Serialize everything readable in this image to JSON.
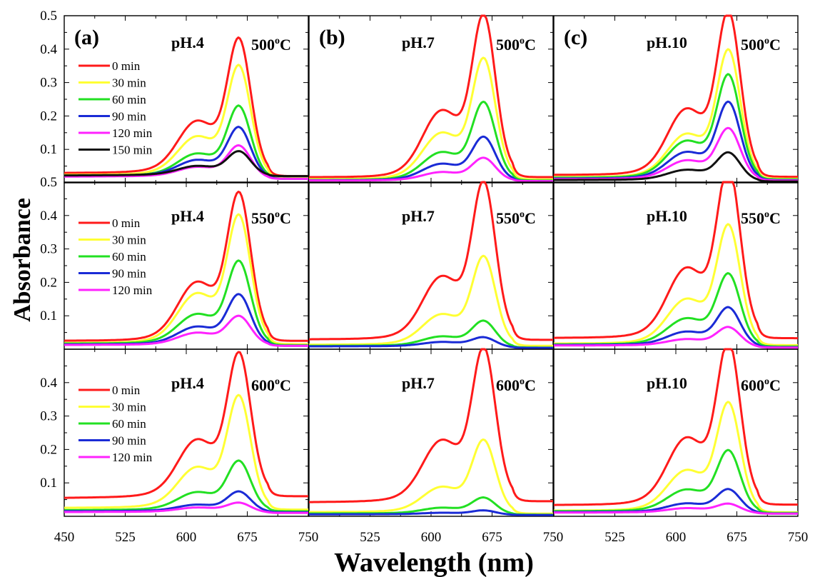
{
  "chart_data": {
    "type": "line",
    "layout": "3x3 grid of absorbance spectra panels",
    "xlabel": "Wavelength (nm)",
    "ylabel": "Absorbance",
    "xlim": [
      450,
      750
    ],
    "x_ticks": [
      "450",
      "525",
      "600",
      "675",
      "750"
    ],
    "ylim": [
      0,
      0.5
    ],
    "y_ticks": [
      "0.1",
      "0.2",
      "0.3",
      "0.4",
      "0.5"
    ],
    "grid": false,
    "legend_placement": "upper-left in left column panels",
    "series_colors": {
      "0 min": "#ff1a1a",
      "30 min": "#ffff33",
      "60 min": "#22e022",
      "90 min": "#1a2bd6",
      "120 min": "#ff22ff",
      "150 min": "#111111"
    },
    "panels": [
      {
        "row": 0,
        "col": 0,
        "panel_label": "(a)",
        "ph": "pH.4",
        "temp_num": "500",
        "temp_unit": "C",
        "legend": [
          "0 min",
          "30 min",
          "60 min",
          "90 min",
          "120 min",
          "150 min"
        ],
        "series": [
          {
            "name": "0 min",
            "peak": 0.39,
            "shoulder": 0.22,
            "base_left": 0.035,
            "base_right": 0.02
          },
          {
            "name": "30 min",
            "peak": 0.32,
            "shoulder": 0.165,
            "base_left": 0.028,
            "base_right": 0.015
          },
          {
            "name": "60 min",
            "peak": 0.213,
            "shoulder": 0.103,
            "base_left": 0.025,
            "base_right": 0.012
          },
          {
            "name": "90 min",
            "peak": 0.155,
            "shoulder": 0.08,
            "base_left": 0.025,
            "base_right": 0.012
          },
          {
            "name": "120 min",
            "peak": 0.105,
            "shoulder": 0.055,
            "base_left": 0.022,
            "base_right": 0.012
          },
          {
            "name": "150 min",
            "peak": 0.088,
            "shoulder": 0.058,
            "base_left": 0.026,
            "base_right": 0.02
          }
        ]
      },
      {
        "row": 0,
        "col": 1,
        "panel_label": "(b)",
        "ph": "pH.7",
        "temp_num": "500",
        "temp_unit": "C",
        "legend": [],
        "series": [
          {
            "name": "0 min",
            "peak": 0.447,
            "shoulder": 0.26,
            "base_left": 0.02,
            "base_right": 0.017
          },
          {
            "name": "30 min",
            "peak": 0.333,
            "shoulder": 0.18,
            "base_left": 0.013,
            "base_right": 0.01
          },
          {
            "name": "60 min",
            "peak": 0.218,
            "shoulder": 0.11,
            "base_left": 0.01,
            "base_right": 0.007
          },
          {
            "name": "90 min",
            "peak": 0.124,
            "shoulder": 0.068,
            "base_left": 0.009,
            "base_right": 0.005
          },
          {
            "name": "120 min",
            "peak": 0.068,
            "shoulder": 0.038,
            "base_left": 0.008,
            "base_right": 0.005
          }
        ]
      },
      {
        "row": 0,
        "col": 2,
        "panel_label": "(c)",
        "ph": "pH.10",
        "temp_num": "500",
        "temp_unit": "C",
        "legend": [],
        "series": [
          {
            "name": "0 min",
            "peak": 0.458,
            "shoulder": 0.265,
            "base_left": 0.028,
            "base_right": 0.018
          },
          {
            "name": "30 min",
            "peak": 0.362,
            "shoulder": 0.175,
            "base_left": 0.02,
            "base_right": 0.012
          },
          {
            "name": "60 min",
            "peak": 0.293,
            "shoulder": 0.15,
            "base_left": 0.018,
            "base_right": 0.01
          },
          {
            "name": "90 min",
            "peak": 0.22,
            "shoulder": 0.11,
            "base_left": 0.015,
            "base_right": 0.008
          },
          {
            "name": "120 min",
            "peak": 0.148,
            "shoulder": 0.08,
            "base_left": 0.013,
            "base_right": 0.007
          },
          {
            "name": "150 min",
            "peak": 0.083,
            "shoulder": 0.046,
            "base_left": 0.01,
            "base_right": 0.004
          }
        ]
      },
      {
        "row": 1,
        "col": 0,
        "panel_label": "",
        "ph": "pH.4",
        "temp_num": "550",
        "temp_unit": "C",
        "legend": [
          "0 min",
          "30 min",
          "60 min",
          "90 min",
          "120 min"
        ],
        "series": [
          {
            "name": "0 min",
            "peak": 0.42,
            "shoulder": 0.24,
            "base_left": 0.03,
            "base_right": 0.025
          },
          {
            "name": "30 min",
            "peak": 0.36,
            "shoulder": 0.2,
            "base_left": 0.022,
            "base_right": 0.015
          },
          {
            "name": "60 min",
            "peak": 0.24,
            "shoulder": 0.125,
            "base_left": 0.02,
            "base_right": 0.012
          },
          {
            "name": "90 min",
            "peak": 0.15,
            "shoulder": 0.08,
            "base_left": 0.017,
            "base_right": 0.01
          },
          {
            "name": "120 min",
            "peak": 0.09,
            "shoulder": 0.058,
            "base_left": 0.015,
            "base_right": 0.01
          }
        ]
      },
      {
        "row": 1,
        "col": 1,
        "panel_label": "",
        "ph": "pH.7",
        "temp_num": "550",
        "temp_unit": "C",
        "legend": [],
        "series": [
          {
            "name": "0 min",
            "peak": 0.45,
            "shoulder": 0.26,
            "base_left": 0.035,
            "base_right": 0.028
          },
          {
            "name": "30 min",
            "peak": 0.253,
            "shoulder": 0.125,
            "base_left": 0.016,
            "base_right": 0.01
          },
          {
            "name": "60 min",
            "peak": 0.078,
            "shoulder": 0.045,
            "base_left": 0.012,
            "base_right": 0.005
          },
          {
            "name": "90 min",
            "peak": 0.033,
            "shoulder": 0.025,
            "base_left": 0.01,
            "base_right": 0.004
          }
        ]
      },
      {
        "row": 1,
        "col": 2,
        "panel_label": "",
        "ph": "pH.10",
        "temp_num": "550",
        "temp_unit": "C",
        "legend": [],
        "series": [
          {
            "name": "0 min",
            "peak": 0.488,
            "shoulder": 0.29,
            "base_left": 0.04,
            "base_right": 0.033
          },
          {
            "name": "30 min",
            "peak": 0.335,
            "shoulder": 0.18,
            "base_left": 0.02,
            "base_right": 0.012
          },
          {
            "name": "60 min",
            "peak": 0.205,
            "shoulder": 0.11,
            "base_left": 0.017,
            "base_right": 0.008
          },
          {
            "name": "90 min",
            "peak": 0.115,
            "shoulder": 0.062,
            "base_left": 0.015,
            "base_right": 0.006
          },
          {
            "name": "120 min",
            "peak": 0.062,
            "shoulder": 0.035,
            "base_left": 0.013,
            "base_right": 0.005
          }
        ]
      },
      {
        "row": 2,
        "col": 0,
        "panel_label": "",
        "ph": "pH.4",
        "temp_num": "600",
        "temp_unit": "C",
        "legend": [
          "0 min",
          "30 min",
          "60 min",
          "90 min",
          "120 min"
        ],
        "series": [
          {
            "name": "0 min",
            "peak": 0.443,
            "shoulder": 0.27,
            "base_left": 0.065,
            "base_right": 0.06
          },
          {
            "name": "30 min",
            "peak": 0.328,
            "shoulder": 0.175,
            "base_left": 0.03,
            "base_right": 0.02
          },
          {
            "name": "60 min",
            "peak": 0.152,
            "shoulder": 0.085,
            "base_left": 0.022,
            "base_right": 0.015
          },
          {
            "name": "90 min",
            "peak": 0.07,
            "shoulder": 0.04,
            "base_left": 0.018,
            "base_right": 0.012
          },
          {
            "name": "120 min",
            "peak": 0.038,
            "shoulder": 0.03,
            "base_left": 0.015,
            "base_right": 0.01
          }
        ]
      },
      {
        "row": 2,
        "col": 1,
        "panel_label": "",
        "ph": "pH.7",
        "temp_num": "600",
        "temp_unit": "C",
        "legend": [],
        "series": [
          {
            "name": "0 min",
            "peak": 0.455,
            "shoulder": 0.27,
            "base_left": 0.05,
            "base_right": 0.045
          },
          {
            "name": "30 min",
            "peak": 0.208,
            "shoulder": 0.105,
            "base_left": 0.015,
            "base_right": 0.008
          },
          {
            "name": "60 min",
            "peak": 0.052,
            "shoulder": 0.03,
            "base_left": 0.01,
            "base_right": 0.005
          },
          {
            "name": "90 min",
            "peak": 0.017,
            "shoulder": 0.012,
            "base_left": 0.007,
            "base_right": 0.004
          }
        ]
      },
      {
        "row": 2,
        "col": 2,
        "panel_label": "",
        "ph": "pH.10",
        "temp_num": "600",
        "temp_unit": "C",
        "legend": [],
        "series": [
          {
            "name": "0 min",
            "peak": 0.468,
            "shoulder": 0.28,
            "base_left": 0.04,
            "base_right": 0.035
          },
          {
            "name": "30 min",
            "peak": 0.307,
            "shoulder": 0.165,
            "base_left": 0.02,
            "base_right": 0.012
          },
          {
            "name": "60 min",
            "peak": 0.18,
            "shoulder": 0.095,
            "base_left": 0.018,
            "base_right": 0.01
          },
          {
            "name": "90 min",
            "peak": 0.075,
            "shoulder": 0.045,
            "base_left": 0.015,
            "base_right": 0.008
          },
          {
            "name": "120 min",
            "peak": 0.035,
            "shoulder": 0.028,
            "base_left": 0.013,
            "base_right": 0.008
          }
        ]
      }
    ]
  }
}
